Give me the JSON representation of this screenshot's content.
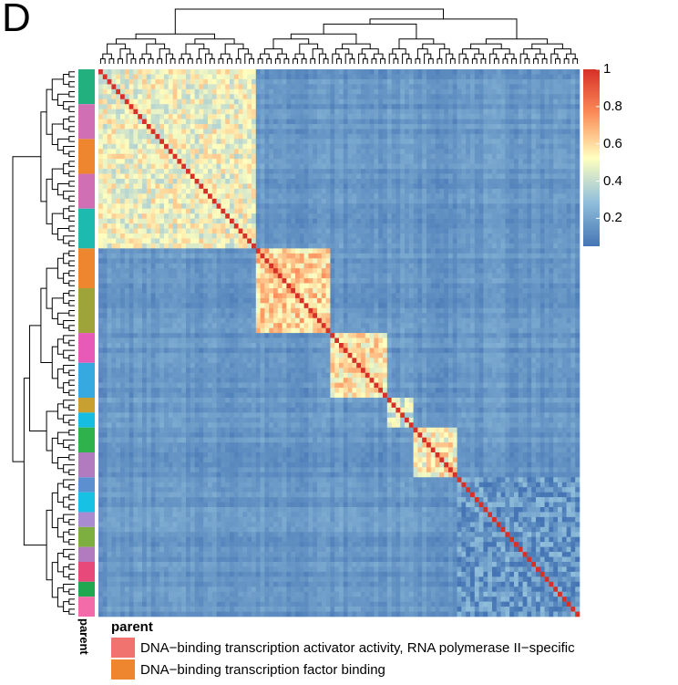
{
  "panel_label": "D",
  "annotation_axis_label": "parent",
  "legend": {
    "title": "parent",
    "items": [
      {
        "label": "DNA−binding transcription activator activity, RNA polymerase II−specific",
        "color": "#F1736F"
      },
      {
        "label": "DNA−binding transcription factor binding",
        "color": "#EE8630"
      }
    ]
  },
  "colorbar": {
    "ticks": [
      "1",
      "0.8",
      "0.6",
      "0.4",
      "0.2"
    ],
    "tick_values": [
      1,
      0.8,
      0.6,
      0.4,
      0.2
    ],
    "range": [
      0.05,
      1
    ],
    "colors": [
      "#4575B4",
      "#91BFDB",
      "#FFFFBF",
      "#FC8D59",
      "#D73027"
    ]
  },
  "chart_data": {
    "type": "heatmap",
    "n_terms": 110,
    "clusters": [
      {
        "start": 0,
        "end": 36,
        "within": 0.5,
        "parent_colors": [
          "#22B07E",
          "#D16FB5",
          "#EE8630",
          "#D16FB5",
          "#1DBAB0"
        ]
      },
      {
        "start": 36,
        "end": 53,
        "within": 0.62,
        "parent_colors": [
          "#EE8630",
          "#9EA33A"
        ]
      },
      {
        "start": 53,
        "end": 66,
        "within": 0.58,
        "parent_colors": [
          "#E85AB8",
          "#36A9E1"
        ]
      },
      {
        "start": 66,
        "end": 72,
        "within": 0.45,
        "parent_colors": [
          "#C8A032",
          "#16BDE1"
        ]
      },
      {
        "start": 72,
        "end": 82,
        "within": 0.55,
        "parent_colors": [
          "#2FB24B",
          "#B27BC0"
        ]
      },
      {
        "start": 82,
        "end": 110,
        "within": 0.15,
        "parent_colors": [
          "#5C8FD0",
          "#17C1E3",
          "#A98BD1",
          "#7CAF3F",
          "#B27BC0",
          "#E8497B",
          "#1FA84F",
          "#F36BA8"
        ]
      }
    ],
    "background_similarity": 0.1,
    "diagonal": 1
  }
}
